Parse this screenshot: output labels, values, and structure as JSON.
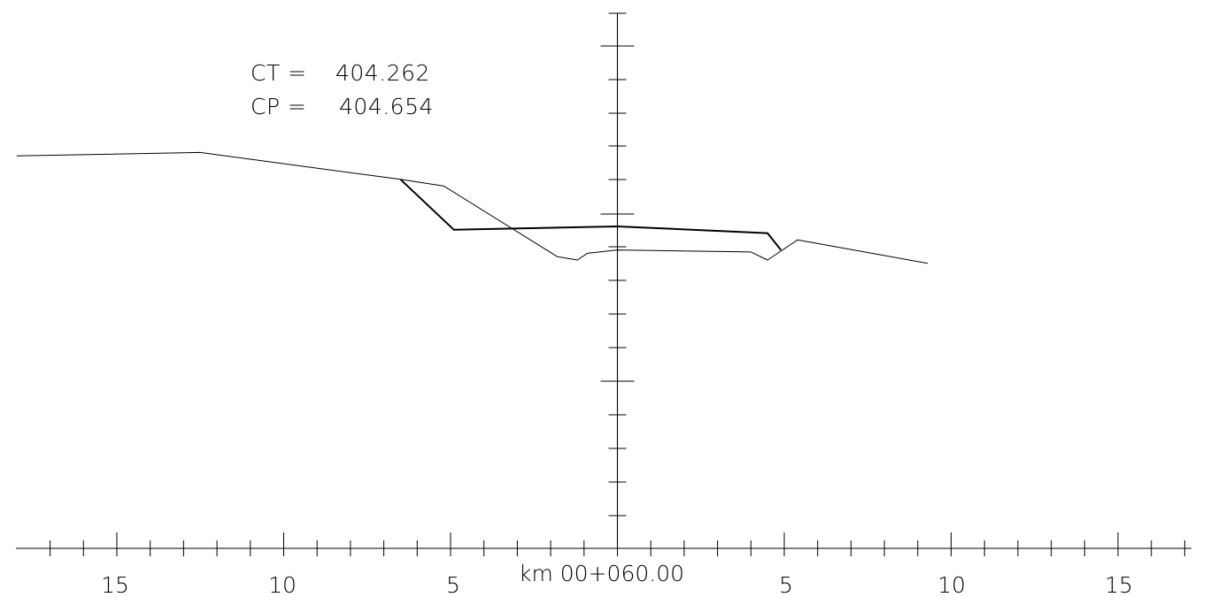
{
  "header": {
    "ct_label": "CT =",
    "ct_value": "404.262",
    "cp_label": "CP =",
    "cp_value": "404.654"
  },
  "station_label": "km  00+060.00",
  "x_tick_labels_left": [
    "15",
    "10",
    "5"
  ],
  "x_tick_labels_right": [
    "5",
    "10",
    "15"
  ],
  "chart_data": {
    "type": "line",
    "xlim": [
      -18,
      18
    ],
    "series": [
      {
        "values": [
          [
            -18,
            404.05
          ],
          [
            -12.5,
            404.1
          ],
          [
            -6.5,
            403.7
          ],
          [
            -5.2,
            403.6
          ],
          [
            -1.8,
            402.55
          ],
          [
            -1.2,
            402.5
          ],
          [
            -0.9,
            402.6
          ],
          [
            0,
            402.65
          ],
          [
            4,
            402.62
          ],
          [
            4.5,
            402.5
          ],
          [
            5.4,
            402.8
          ],
          [
            9.3,
            402.45
          ]
        ]
      },
      {
        "values": [
          [
            -6.5,
            403.7
          ],
          [
            -4.9,
            402.95
          ],
          [
            0,
            403.0
          ],
          [
            4.5,
            402.9
          ],
          [
            4.9,
            402.65
          ]
        ]
      }
    ]
  }
}
